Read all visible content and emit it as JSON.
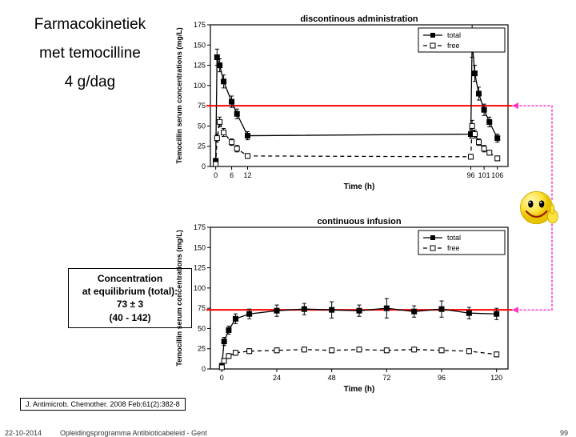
{
  "title": {
    "l1": "Farmacokinetiek",
    "l2": "met temocilline",
    "l3": "4 g/dag"
  },
  "conc_box": {
    "l1": "Concentration",
    "l2": "at equilibrium (total):",
    "l3": "73 ± 3",
    "l4": "(40 - 142)"
  },
  "citation": "J. Antimicrob. Chemother. 2008 Feb;61(2):382-8",
  "footer": {
    "date": "22-10-2014",
    "program": "Opleidingsprogramma Antibioticabeleid - Gent",
    "page": "99"
  },
  "chart_top": {
    "type": "line",
    "title": "discontinous administration",
    "legend": [
      "total",
      "free"
    ],
    "ylabel": "Temocillin serum concentrations (mg/L)",
    "xlabel": "Time (h)",
    "xlim": [
      -2,
      110
    ],
    "xticks": [
      0,
      6,
      12,
      96,
      101,
      106
    ],
    "ylim": [
      0,
      175
    ],
    "yticks": [
      0,
      25,
      50,
      75,
      100,
      125,
      150,
      175
    ],
    "series": {
      "total": {
        "marker": "filled-square",
        "dash": "solid",
        "x": [
          0,
          0.5,
          1.5,
          3,
          6,
          8,
          12,
          96,
          96.5,
          97.5,
          99,
          101,
          103,
          106
        ],
        "y": [
          7,
          135,
          125,
          105,
          80,
          65,
          38,
          40,
          155,
          115,
          90,
          70,
          55,
          35
        ],
        "err": [
          3,
          10,
          8,
          8,
          7,
          6,
          5,
          5,
          20,
          10,
          8,
          7,
          6,
          5
        ]
      },
      "free": {
        "marker": "open-square",
        "dash": "dashed",
        "x": [
          0,
          0.5,
          1.5,
          3,
          6,
          8,
          12,
          96,
          96.5,
          97.5,
          99,
          101,
          103,
          106
        ],
        "y": [
          3,
          35,
          55,
          42,
          30,
          22,
          13,
          12,
          50,
          40,
          30,
          22,
          17,
          10
        ],
        "err": [
          2,
          5,
          6,
          5,
          4,
          4,
          3,
          3,
          7,
          5,
          4,
          4,
          3,
          3
        ]
      }
    },
    "hline": {
      "y": 75,
      "color": "#ff0000",
      "width": 2
    },
    "axis_color": "#000",
    "bg": "#fff",
    "font": 9
  },
  "chart_bottom": {
    "type": "line",
    "title": "continuous infusion",
    "legend": [
      "total",
      "free"
    ],
    "ylabel": "Temocillin serum concentrations (mg/L)",
    "xlabel": "Time (h)",
    "xlim": [
      -5,
      125
    ],
    "xticks": [
      0,
      24,
      48,
      72,
      96,
      120
    ],
    "ylim": [
      0,
      175
    ],
    "yticks": [
      0,
      25,
      50,
      75,
      100,
      125,
      150,
      175
    ],
    "series": {
      "total": {
        "marker": "filled-square",
        "dash": "solid",
        "x": [
          0,
          1,
          3,
          6,
          12,
          24,
          36,
          48,
          60,
          72,
          84,
          96,
          108,
          120
        ],
        "y": [
          4,
          34,
          48,
          62,
          68,
          72,
          74,
          73,
          72,
          75,
          71,
          74,
          69,
          68
        ],
        "err": [
          2,
          5,
          5,
          6,
          6,
          7,
          7,
          10,
          7,
          12,
          7,
          10,
          7,
          7
        ]
      },
      "free": {
        "marker": "open-square",
        "dash": "dashed",
        "x": [
          0,
          1,
          3,
          6,
          12,
          24,
          36,
          48,
          60,
          72,
          84,
          96,
          108,
          120
        ],
        "y": [
          2,
          10,
          16,
          20,
          22,
          23,
          24,
          23,
          24,
          23,
          24,
          23,
          22,
          18
        ],
        "err": [
          1,
          3,
          3,
          3,
          3,
          3,
          3,
          3,
          3,
          3,
          3,
          3,
          3,
          3
        ]
      }
    },
    "hline": {
      "y": 73,
      "color": "#ff0000",
      "width": 2
    },
    "axis_color": "#000",
    "bg": "#fff",
    "font": 9
  },
  "connectors": {
    "color": "#ff33cc",
    "dash": "2,3",
    "width": 1.5
  },
  "smiley": {
    "face": "#ffe23b",
    "outline": "#caa800",
    "hand": "#ffe23b"
  }
}
